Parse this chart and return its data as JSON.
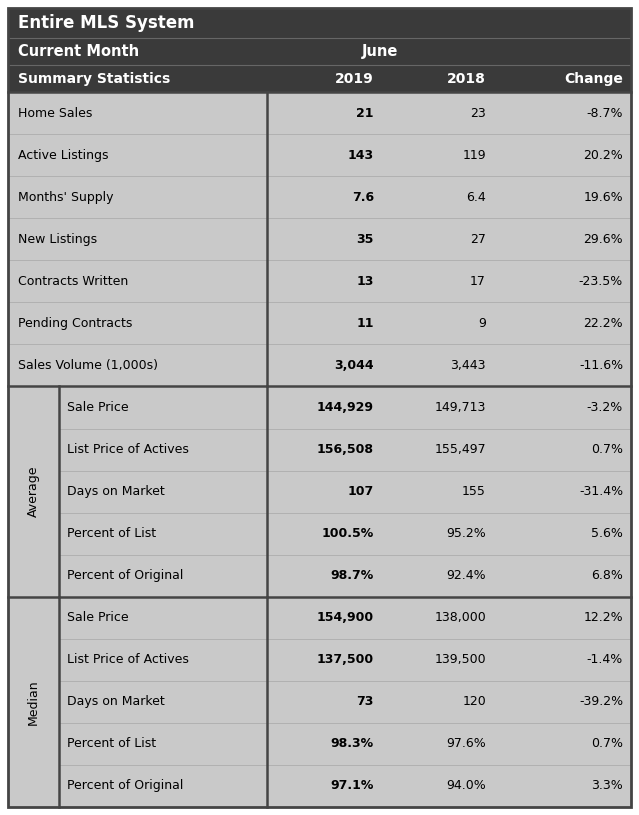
{
  "title_line1": "Entire MLS System",
  "title_line2": "Current Month",
  "title_month": "June",
  "header_bg": "#3a3a3a",
  "header_text_color": "#ffffff",
  "cell_bg": "#c9c9c9",
  "border_dark": "#444444",
  "border_light": "#aaaaaa",
  "col_headers": [
    "Summary Statistics",
    "2019",
    "2018",
    "Change"
  ],
  "summary_rows": [
    [
      "Home Sales",
      "21",
      "23",
      "-8.7%"
    ],
    [
      "Active Listings",
      "143",
      "119",
      "20.2%"
    ],
    [
      "Months' Supply",
      "7.6",
      "6.4",
      "19.6%"
    ],
    [
      "New Listings",
      "35",
      "27",
      "29.6%"
    ],
    [
      "Contracts Written",
      "13",
      "17",
      "-23.5%"
    ],
    [
      "Pending Contracts",
      "11",
      "9",
      "22.2%"
    ],
    [
      "Sales Volume (1,000s)",
      "3,044",
      "3,443",
      "-11.6%"
    ]
  ],
  "average_label": "Average",
  "average_rows": [
    [
      "Sale Price",
      "144,929",
      "149,713",
      "-3.2%"
    ],
    [
      "List Price of Actives",
      "156,508",
      "155,497",
      "0.7%"
    ],
    [
      "Days on Market",
      "107",
      "155",
      "-31.4%"
    ],
    [
      "Percent of List",
      "100.5%",
      "95.2%",
      "5.6%"
    ],
    [
      "Percent of Original",
      "98.7%",
      "92.4%",
      "6.8%"
    ]
  ],
  "median_label": "Median",
  "median_rows": [
    [
      "Sale Price",
      "154,900",
      "138,000",
      "12.2%"
    ],
    [
      "List Price of Actives",
      "137,500",
      "139,500",
      "-1.4%"
    ],
    [
      "Days on Market",
      "73",
      "120",
      "-39.2%"
    ],
    [
      "Percent of List",
      "98.3%",
      "97.6%",
      "0.7%"
    ],
    [
      "Percent of Original",
      "97.1%",
      "94.0%",
      "3.3%"
    ]
  ],
  "figwidth": 6.39,
  "figheight": 8.15,
  "dpi": 100
}
